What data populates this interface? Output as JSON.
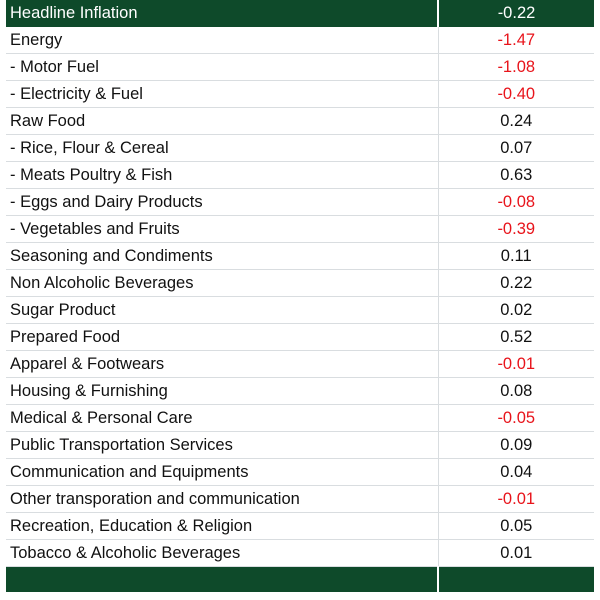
{
  "table": {
    "header": {
      "label": "Headline Inflation",
      "value": "-0.22"
    },
    "rows": [
      {
        "label": "Energy",
        "value": "-1.47",
        "negative": true
      },
      {
        "label": "- Motor Fuel",
        "value": "-1.08",
        "negative": true
      },
      {
        "label": "- Electricity & Fuel",
        "value": "-0.40",
        "negative": true
      },
      {
        "label": "Raw Food",
        "value": "0.24",
        "negative": false
      },
      {
        "label": "- Rice, Flour & Cereal",
        "value": "0.07",
        "negative": false
      },
      {
        "label": "- Meats Poultry & Fish",
        "value": "0.63",
        "negative": false
      },
      {
        "label": "- Eggs and Dairy Products",
        "value": "-0.08",
        "negative": true
      },
      {
        "label": "- Vegetables and Fruits",
        "value": "-0.39",
        "negative": true
      },
      {
        "label": "Seasoning and Condiments",
        "value": "0.11",
        "negative": false
      },
      {
        "label": "Non Alcoholic Beverages",
        "value": "0.22",
        "negative": false
      },
      {
        "label": "Sugar Product",
        "value": "0.02",
        "negative": false
      },
      {
        "label": "Prepared Food",
        "value": "0.52",
        "negative": false
      },
      {
        "label": "Apparel & Footwears",
        "value": "-0.01",
        "negative": true
      },
      {
        "label": "Housing & Furnishing",
        "value": "0.08",
        "negative": false
      },
      {
        "label": "Medical & Personal Care",
        "value": "-0.05",
        "negative": true
      },
      {
        "label": "Public Transportation Services",
        "value": "0.09",
        "negative": false
      },
      {
        "label": "Communication and Equipments",
        "value": "0.04",
        "negative": false
      },
      {
        "label": "Other transporation and communication",
        "value": "-0.01",
        "negative": true
      },
      {
        "label": "Recreation, Education & Religion",
        "value": "0.05",
        "negative": false
      },
      {
        "label": "Tobacco & Alcoholic Beverages",
        "value": "0.01",
        "negative": false
      }
    ]
  },
  "colors": {
    "header_bg": "#0e4a2a",
    "negative": "#e8141b",
    "text": "#111111"
  }
}
